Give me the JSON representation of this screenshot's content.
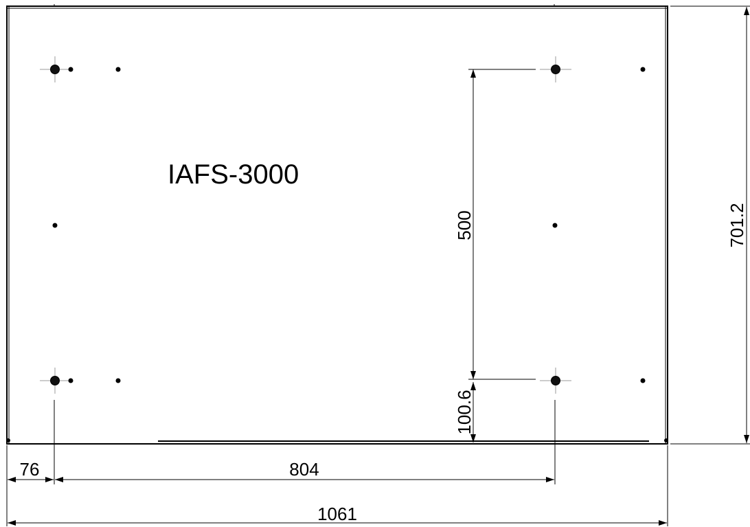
{
  "title": "IAFS-3000",
  "dimensions": {
    "hole_spacing_vertical": "500",
    "hole_offset_bottom": "100.6",
    "overall_height": "701.2",
    "hole_offset_left": "76",
    "hole_spacing_horizontal": "804",
    "overall_width": "1061"
  }
}
